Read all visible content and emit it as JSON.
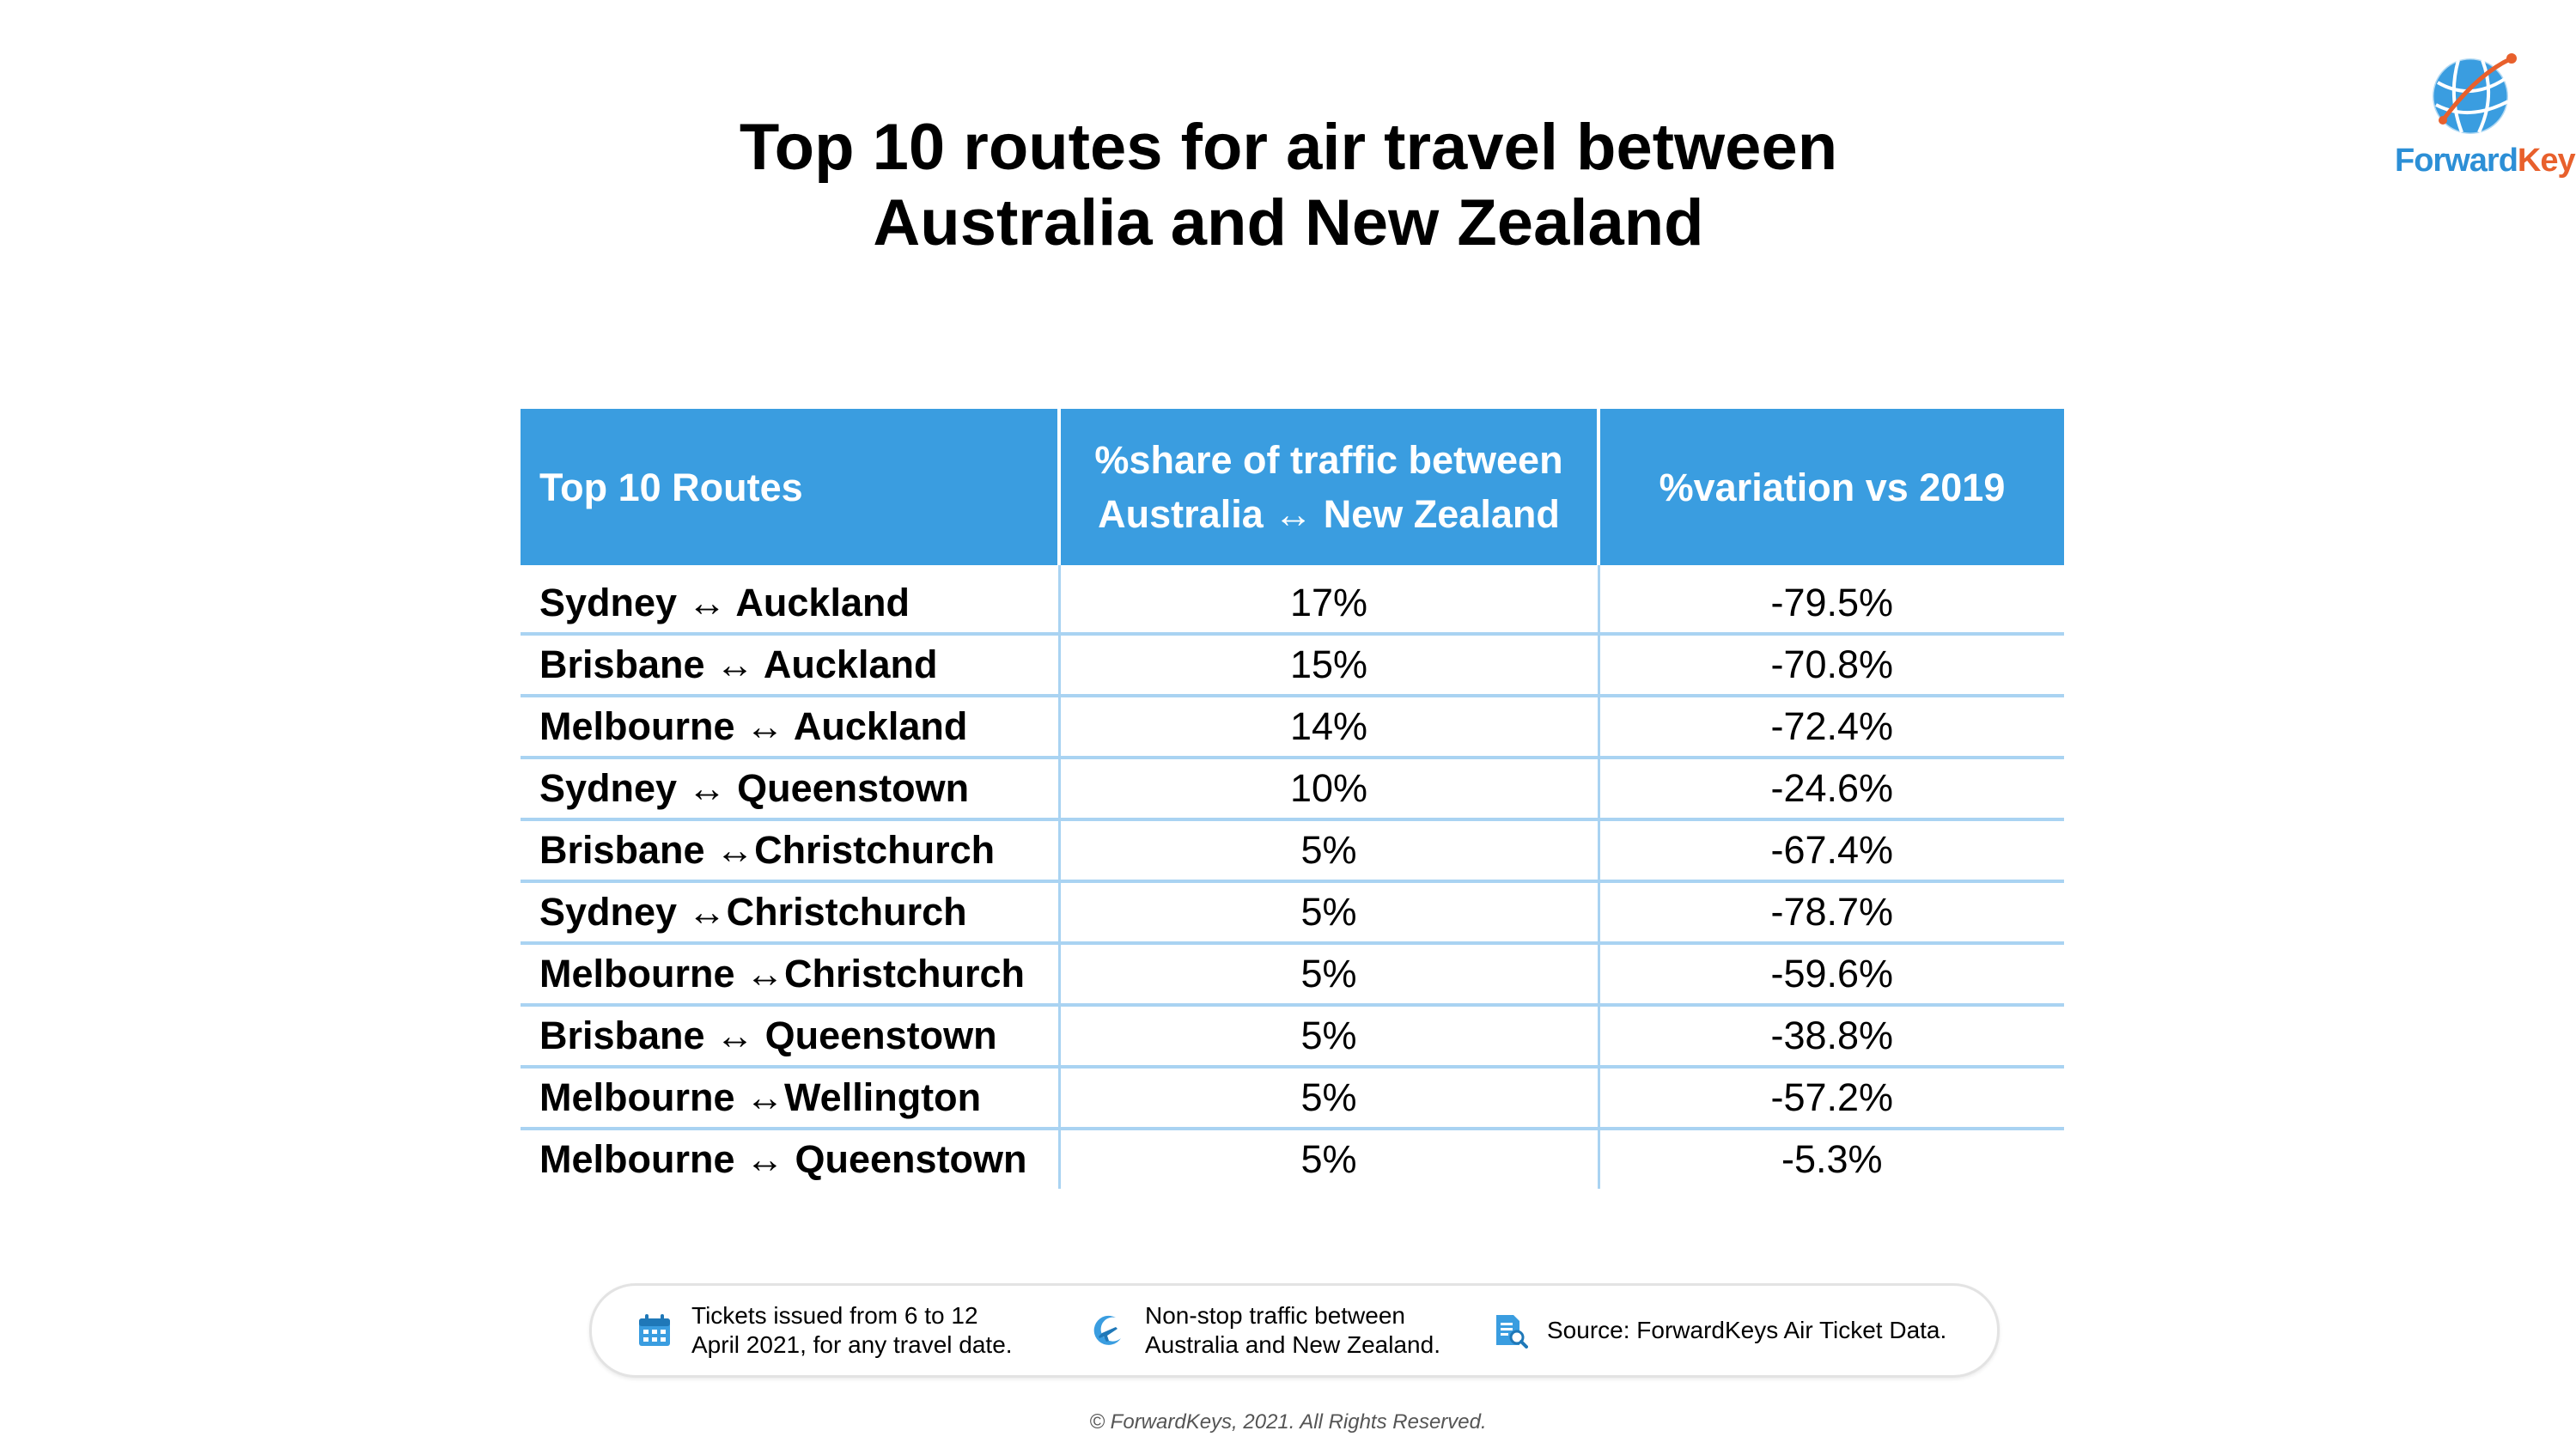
{
  "title_line1": "Top 10 routes for air travel between",
  "title_line2": "Australia and New Zealand",
  "logo": {
    "text_forward": "Forward",
    "text_keys": "Keys",
    "colors": {
      "blue": "#2c8fd6",
      "orange": "#e8602c"
    }
  },
  "chart_data": {
    "type": "table",
    "columns": [
      "Top 10 Routes",
      "%share of traffic between Australia ↔ New Zealand",
      "%variation vs 2019"
    ],
    "header_lines": {
      "col2_line1": "%share of traffic between",
      "col2_line2": "Australia ↔ New Zealand"
    },
    "rows": [
      {
        "route": "Sydney ↔ Auckland",
        "share": "17%",
        "variation": "-79.5%"
      },
      {
        "route": "Brisbane ↔ Auckland",
        "share": "15%",
        "variation": "-70.8%"
      },
      {
        "route": "Melbourne ↔ Auckland",
        "share": "14%",
        "variation": "-72.4%"
      },
      {
        "route": "Sydney ↔ Queenstown",
        "share": "10%",
        "variation": "-24.6%"
      },
      {
        "route": "Brisbane ↔Christchurch",
        "share": "5%",
        "variation": "-67.4%"
      },
      {
        "route": "Sydney ↔Christchurch",
        "share": "5%",
        "variation": "-78.7%"
      },
      {
        "route": "Melbourne ↔Christchurch",
        "share": "5%",
        "variation": "-59.6%"
      },
      {
        "route": "Brisbane ↔ Queenstown",
        "share": "5%",
        "variation": "-38.8%"
      },
      {
        "route": "Melbourne ↔Wellington",
        "share": "5%",
        "variation": "-57.2%"
      },
      {
        "route": "Melbourne ↔ Queenstown",
        "share": "5%",
        "variation": "-5.3%"
      }
    ],
    "colors": {
      "header": "#3a9de0",
      "row_border": "#a9d3f2"
    }
  },
  "footer": {
    "note1_line1": "Tickets issued from 6 to 12",
    "note1_line2": "April 2021, for any travel date.",
    "note1_icon": "calendar-icon",
    "note2_line1": "Non-stop traffic between",
    "note2_line2": "Australia and New Zealand.",
    "note2_icon": "airplane-icon",
    "note3": "Source: ForwardKeys Air Ticket Data.",
    "note3_icon": "document-search-icon",
    "icon_color": "#3a9de0"
  },
  "copyright": "© ForwardKeys, 2021. All Rights Reserved."
}
